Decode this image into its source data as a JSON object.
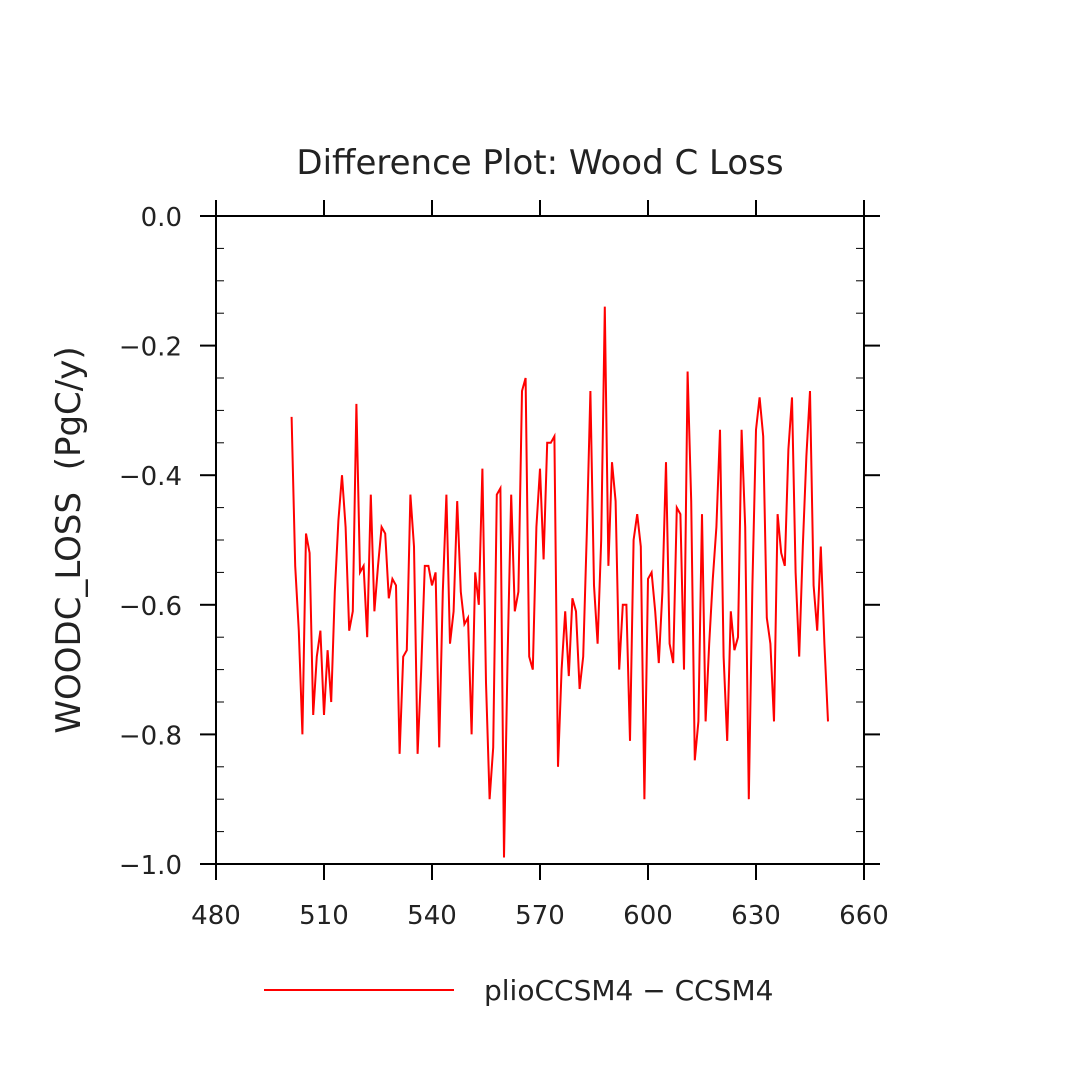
{
  "chart_data": {
    "type": "line",
    "title": "Difference Plot: Wood C Loss",
    "xlabel": "",
    "ylabel": "WOODC_LOSS  (PgC/y)",
    "xlim": [
      480,
      660
    ],
    "ylim": [
      -1.0,
      0.0
    ],
    "x_ticks": [
      480,
      510,
      540,
      570,
      600,
      630,
      660
    ],
    "x_tick_labels": [
      "480",
      "510",
      "540",
      "570",
      "600",
      "630",
      "660"
    ],
    "y_ticks": [
      0.0,
      -0.2,
      -0.4,
      -0.6,
      -0.8,
      -1.0
    ],
    "y_tick_labels": [
      "0.0",
      "−0.2",
      "−0.4",
      "−0.6",
      "−0.8",
      "−1.0"
    ],
    "grid": false,
    "legend_position": "bottom",
    "series": [
      {
        "name": "plioCCSM4 − CCSM4",
        "color": "#ff0000",
        "x": [
          501,
          502,
          503,
          504,
          505,
          506,
          507,
          508,
          509,
          510,
          511,
          512,
          513,
          514,
          515,
          516,
          517,
          518,
          519,
          520,
          521,
          522,
          523,
          524,
          525,
          526,
          527,
          528,
          529,
          530,
          531,
          532,
          533,
          534,
          535,
          536,
          537,
          538,
          539,
          540,
          541,
          542,
          543,
          544,
          545,
          546,
          547,
          548,
          549,
          550,
          551,
          552,
          553,
          554,
          555,
          556,
          557,
          558,
          559,
          560,
          561,
          562,
          563,
          564,
          565,
          566,
          567,
          568,
          569,
          570,
          571,
          572,
          573,
          574,
          575,
          576,
          577,
          578,
          579,
          580,
          581,
          582,
          583,
          584,
          585,
          586,
          587,
          588,
          589,
          590,
          591,
          592,
          593,
          594,
          595,
          596,
          597,
          598,
          599,
          600,
          601,
          602,
          603,
          604,
          605,
          606,
          607,
          608,
          609,
          610,
          611,
          612,
          613,
          614,
          615,
          616,
          617,
          618,
          619,
          620,
          621,
          622,
          623,
          624,
          625,
          626,
          627,
          628,
          629,
          630,
          631,
          632,
          633,
          634,
          635,
          636,
          637,
          638,
          639,
          640,
          641,
          642,
          643,
          644,
          645,
          646,
          647,
          648,
          649,
          650
        ],
        "y": [
          -0.31,
          -0.54,
          -0.64,
          -0.8,
          -0.49,
          -0.52,
          -0.77,
          -0.68,
          -0.64,
          -0.77,
          -0.67,
          -0.75,
          -0.58,
          -0.47,
          -0.4,
          -0.48,
          -0.64,
          -0.61,
          -0.29,
          -0.55,
          -0.54,
          -0.65,
          -0.43,
          -0.61,
          -0.54,
          -0.48,
          -0.49,
          -0.59,
          -0.56,
          -0.57,
          -0.83,
          -0.68,
          -0.67,
          -0.43,
          -0.51,
          -0.83,
          -0.7,
          -0.54,
          -0.54,
          -0.57,
          -0.55,
          -0.82,
          -0.58,
          -0.43,
          -0.66,
          -0.61,
          -0.44,
          -0.58,
          -0.63,
          -0.62,
          -0.8,
          -0.55,
          -0.6,
          -0.39,
          -0.72,
          -0.9,
          -0.82,
          -0.43,
          -0.42,
          -0.99,
          -0.68,
          -0.43,
          -0.61,
          -0.58,
          -0.27,
          -0.25,
          -0.68,
          -0.7,
          -0.48,
          -0.39,
          -0.53,
          -0.35,
          -0.35,
          -0.34,
          -0.85,
          -0.7,
          -0.61,
          -0.71,
          -0.59,
          -0.61,
          -0.73,
          -0.68,
          -0.49,
          -0.27,
          -0.57,
          -0.66,
          -0.5,
          -0.14,
          -0.54,
          -0.38,
          -0.44,
          -0.7,
          -0.6,
          -0.6,
          -0.81,
          -0.5,
          -0.46,
          -0.51,
          -0.9,
          -0.56,
          -0.55,
          -0.61,
          -0.69,
          -0.58,
          -0.38,
          -0.66,
          -0.69,
          -0.45,
          -0.46,
          -0.7,
          -0.24,
          -0.44,
          -0.84,
          -0.78,
          -0.46,
          -0.78,
          -0.66,
          -0.56,
          -0.48,
          -0.33,
          -0.68,
          -0.81,
          -0.61,
          -0.67,
          -0.65,
          -0.33,
          -0.48,
          -0.9,
          -0.57,
          -0.33,
          -0.28,
          -0.34,
          -0.62,
          -0.66,
          -0.78,
          -0.46,
          -0.52,
          -0.54,
          -0.36,
          -0.28,
          -0.55,
          -0.68,
          -0.51,
          -0.37,
          -0.27,
          -0.57,
          -0.64,
          -0.51,
          -0.66,
          -0.78
        ]
      }
    ]
  }
}
